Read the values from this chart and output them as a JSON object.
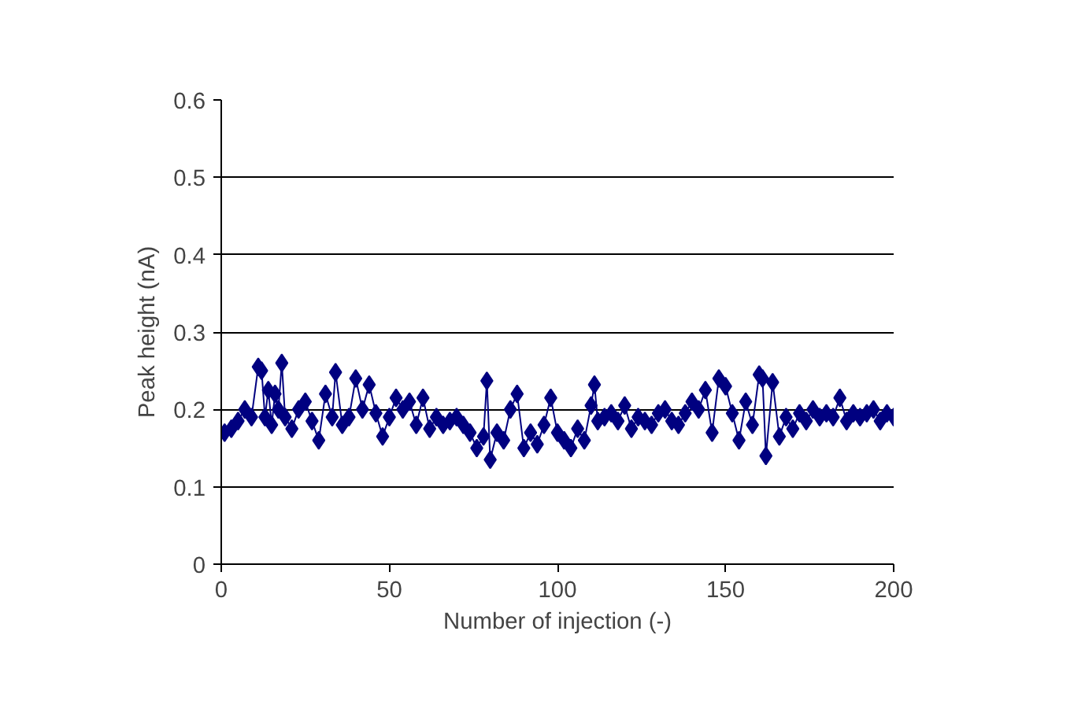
{
  "chart_data": {
    "type": "line",
    "xlabel": "Number of injection (-)",
    "ylabel": "Peak height (nA)",
    "marker": "diamond",
    "line_style": "solid",
    "grid": "y",
    "xlim": [
      0,
      200
    ],
    "xticks": [
      0,
      50,
      100,
      150,
      200
    ],
    "ylim": [
      0,
      0.6
    ],
    "yticks": [
      0,
      0.1,
      0.2,
      0.3,
      0.4,
      0.5,
      0.6
    ],
    "series": [
      {
        "color": "#000080",
        "x": [
          1,
          3,
          5,
          7,
          9,
          11,
          12,
          13,
          14,
          15,
          16,
          17,
          18,
          19,
          21,
          23,
          25,
          27,
          29,
          31,
          33,
          34,
          36,
          38,
          40,
          42,
          44,
          46,
          48,
          50,
          52,
          54,
          56,
          58,
          60,
          62,
          64,
          66,
          68,
          70,
          72,
          74,
          76,
          78,
          79,
          80,
          82,
          84,
          86,
          88,
          90,
          92,
          94,
          96,
          98,
          100,
          102,
          104,
          106,
          108,
          110,
          111,
          112,
          114,
          116,
          118,
          120,
          122,
          124,
          126,
          128,
          130,
          132,
          134,
          136,
          138,
          140,
          142,
          144,
          146,
          148,
          150,
          152,
          154,
          156,
          158,
          160,
          161,
          162,
          164,
          166,
          168,
          170,
          172,
          174,
          176,
          178,
          180,
          182,
          184,
          186,
          188,
          190,
          192,
          194,
          196,
          198,
          200
        ],
        "values": [
          0.17,
          0.175,
          0.185,
          0.2,
          0.19,
          0.255,
          0.25,
          0.19,
          0.225,
          0.18,
          0.22,
          0.2,
          0.26,
          0.19,
          0.175,
          0.2,
          0.21,
          0.185,
          0.16,
          0.22,
          0.19,
          0.248,
          0.18,
          0.19,
          0.24,
          0.2,
          0.232,
          0.195,
          0.165,
          0.19,
          0.215,
          0.2,
          0.21,
          0.18,
          0.215,
          0.175,
          0.19,
          0.18,
          0.185,
          0.19,
          0.18,
          0.17,
          0.15,
          0.165,
          0.237,
          0.135,
          0.17,
          0.16,
          0.2,
          0.22,
          0.15,
          0.17,
          0.155,
          0.18,
          0.215,
          0.17,
          0.16,
          0.15,
          0.175,
          0.16,
          0.205,
          0.232,
          0.185,
          0.19,
          0.195,
          0.185,
          0.205,
          0.175,
          0.19,
          0.185,
          0.18,
          0.195,
          0.2,
          0.185,
          0.18,
          0.195,
          0.21,
          0.2,
          0.225,
          0.17,
          0.24,
          0.23,
          0.195,
          0.16,
          0.21,
          0.18,
          0.245,
          0.24,
          0.14,
          0.235,
          0.165,
          0.19,
          0.175,
          0.195,
          0.185,
          0.2,
          0.19,
          0.195,
          0.19,
          0.215,
          0.185,
          0.195,
          0.19,
          0.195,
          0.2,
          0.185,
          0.195,
          0.19
        ]
      }
    ]
  }
}
